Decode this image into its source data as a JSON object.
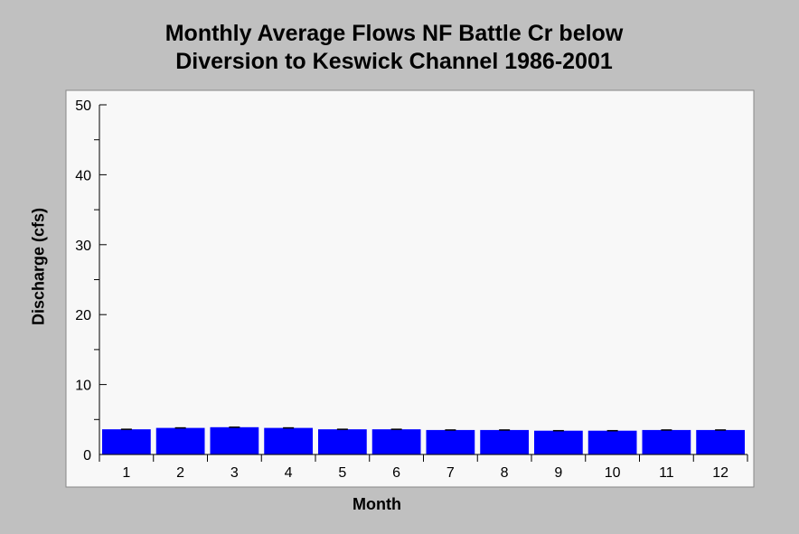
{
  "chart_data": {
    "type": "bar",
    "title_lines": [
      "Monthly Average Flows NF Battle Cr below",
      "Diversion to Keswick Channel 1986-2001"
    ],
    "xlabel": "Month",
    "ylabel": "Discharge (cfs)",
    "categories": [
      "1",
      "2",
      "3",
      "4",
      "5",
      "6",
      "7",
      "8",
      "9",
      "10",
      "11",
      "12"
    ],
    "values": [
      3.6,
      3.8,
      3.9,
      3.8,
      3.6,
      3.6,
      3.5,
      3.5,
      3.4,
      3.4,
      3.5,
      3.5
    ],
    "ylim": [
      0,
      50
    ],
    "yticks": [
      "0",
      "10",
      "20",
      "30",
      "40",
      "50"
    ],
    "bar_color": "#0000ff",
    "plot_background": "#f8f8f8",
    "page_background": "#c0c0c0",
    "grid": false
  }
}
